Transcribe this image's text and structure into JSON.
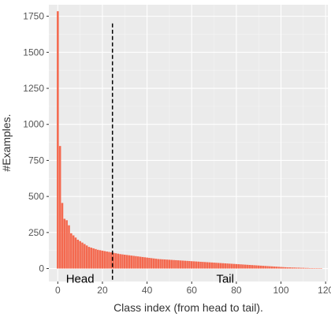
{
  "chart_data": {
    "type": "bar",
    "title": "",
    "xlabel": "Class index (from head to tail).",
    "ylabel": "#Examples.",
    "xlim": [
      -4,
      121
    ],
    "ylim": [
      -90,
      1830
    ],
    "xticks": [
      0,
      20,
      40,
      60,
      80,
      100,
      120
    ],
    "yticks": [
      0,
      250,
      500,
      750,
      1000,
      1250,
      1500,
      1750
    ],
    "grid": true,
    "bar_color": "#f4694f",
    "panel_color": "#ebebeb",
    "x": [
      0,
      1,
      2,
      3,
      4,
      5,
      6,
      7,
      8,
      9,
      10,
      11,
      12,
      13,
      14,
      15,
      16,
      17,
      18,
      19,
      20,
      21,
      22,
      23,
      24,
      25,
      26,
      27,
      28,
      29,
      30,
      31,
      32,
      33,
      34,
      35,
      36,
      37,
      38,
      39,
      40,
      41,
      42,
      43,
      44,
      45,
      46,
      47,
      48,
      49,
      50,
      51,
      52,
      53,
      54,
      55,
      56,
      57,
      58,
      59,
      60,
      61,
      62,
      63,
      64,
      65,
      66,
      67,
      68,
      69,
      70,
      71,
      72,
      73,
      74,
      75,
      76,
      77,
      78,
      79,
      80,
      81,
      82,
      83,
      84,
      85,
      86,
      87,
      88,
      89,
      90,
      91,
      92,
      93,
      94,
      95,
      96,
      97,
      98,
      99,
      100,
      101,
      102,
      103,
      104,
      105,
      106,
      107,
      108,
      109,
      110,
      111,
      112,
      113,
      114,
      115,
      116,
      117,
      118
    ],
    "values": [
      1785,
      850,
      455,
      345,
      335,
      300,
      245,
      230,
      215,
      200,
      190,
      180,
      170,
      160,
      150,
      145,
      140,
      135,
      130,
      127,
      124,
      121,
      118,
      115,
      112,
      109,
      106,
      103,
      100,
      98,
      96,
      94,
      92,
      90,
      88,
      86,
      84,
      82,
      80,
      78,
      76,
      74,
      72,
      70,
      68,
      66,
      65,
      64,
      63,
      62,
      61,
      60,
      59,
      58,
      57,
      56,
      55,
      54,
      53,
      52,
      51,
      50,
      49,
      48,
      47,
      46,
      45,
      44,
      43,
      42,
      41,
      40,
      39,
      38,
      37,
      36,
      35,
      34,
      33,
      32,
      31,
      30,
      29,
      28,
      27,
      26,
      25,
      24,
      23,
      22,
      21,
      20,
      19,
      18,
      17,
      16,
      15,
      14,
      13,
      12,
      11,
      10,
      9,
      8,
      8,
      7,
      7,
      6,
      6,
      5,
      5,
      4,
      4,
      3,
      3,
      2,
      2,
      1,
      1
    ],
    "divider": {
      "x": 24.5,
      "y_top": 1700,
      "style": "dashed"
    },
    "annotations": [
      {
        "text": "Head",
        "x": 10,
        "y": -70
      },
      {
        "text": "Tail",
        "x": 75,
        "y": -70
      }
    ]
  }
}
